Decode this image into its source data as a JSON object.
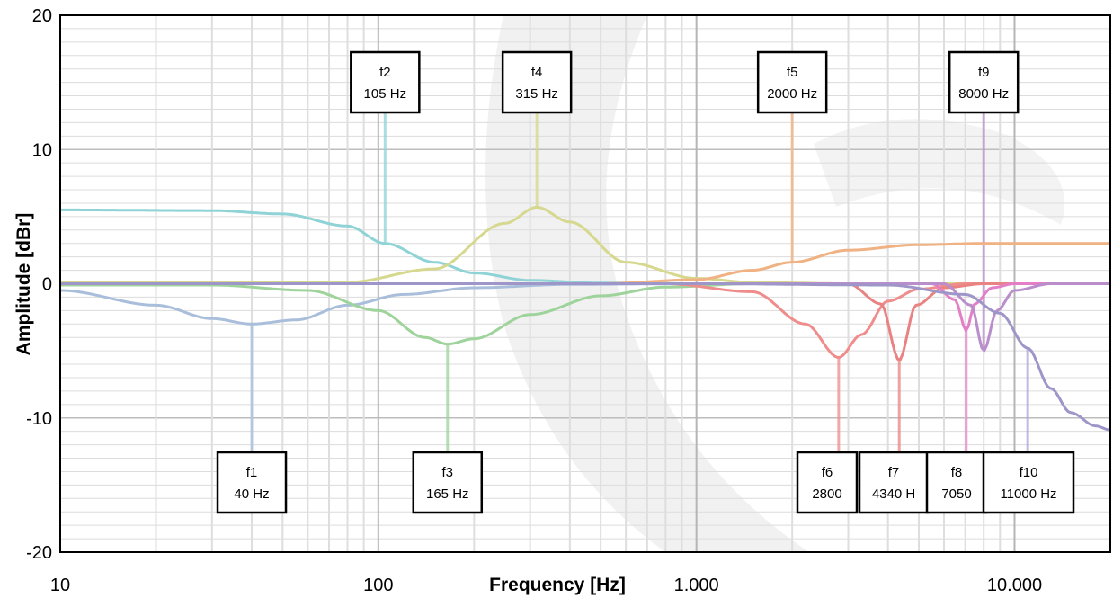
{
  "chart_data": {
    "type": "line",
    "title": "",
    "xlabel": "Frequency [Hz]",
    "ylabel": "Amplitude  [dBr]",
    "xscale": "log",
    "xlim": [
      10,
      20000
    ],
    "ylim": [
      -20,
      20
    ],
    "grid": true,
    "x_ticks": [
      {
        "value": 10,
        "label": "10"
      },
      {
        "value": 100,
        "label": "100"
      },
      {
        "value": 1000,
        "label": "1.000"
      },
      {
        "value": 10000,
        "label": "10.000"
      }
    ],
    "y_ticks": [
      {
        "value": 20,
        "label": "20"
      },
      {
        "value": 10,
        "label": "10"
      },
      {
        "value": 0,
        "label": "0"
      },
      {
        "value": -10,
        "label": "-10"
      },
      {
        "value": -20,
        "label": "-20"
      }
    ],
    "series": [
      {
        "color": "#8fd3d6",
        "kind": "lowshelf",
        "f": 105,
        "gain": 5.5,
        "points": [
          [
            10,
            5.5
          ],
          [
            30,
            5.45
          ],
          [
            50,
            5.2
          ],
          [
            80,
            4.3
          ],
          [
            105,
            3.0
          ],
          [
            150,
            1.6
          ],
          [
            200,
            0.8
          ],
          [
            300,
            0.25
          ],
          [
            500,
            0.05
          ],
          [
            1000,
            0
          ]
        ]
      },
      {
        "color": "#a9bedb",
        "kind": "peak",
        "f": 40,
        "gain": -3.0,
        "points": [
          [
            10,
            -0.5
          ],
          [
            20,
            -1.6
          ],
          [
            30,
            -2.6
          ],
          [
            40,
            -3.0
          ],
          [
            55,
            -2.7
          ],
          [
            80,
            -1.6
          ],
          [
            120,
            -0.8
          ],
          [
            200,
            -0.3
          ],
          [
            400,
            -0.05
          ],
          [
            1000,
            0
          ]
        ]
      },
      {
        "color": "#9ed39b",
        "kind": "peak",
        "f": 165,
        "gain": -4.5,
        "points": [
          [
            30,
            -0.1
          ],
          [
            60,
            -0.5
          ],
          [
            100,
            -2.0
          ],
          [
            140,
            -4.0
          ],
          [
            165,
            -4.5
          ],
          [
            200,
            -4.1
          ],
          [
            300,
            -2.3
          ],
          [
            500,
            -0.9
          ],
          [
            800,
            -0.25
          ],
          [
            1500,
            0
          ]
        ]
      },
      {
        "color": "#d6d88e",
        "kind": "peak",
        "f": 315,
        "gain": 5.7,
        "points": [
          [
            80,
            0.1
          ],
          [
            150,
            1.1
          ],
          [
            250,
            4.5
          ],
          [
            315,
            5.7
          ],
          [
            400,
            4.6
          ],
          [
            600,
            1.6
          ],
          [
            1000,
            0.4
          ],
          [
            1500,
            0.1
          ],
          [
            3000,
            0
          ]
        ]
      },
      {
        "color": "#f0b183",
        "kind": "highshelf",
        "f": 2000,
        "gain": 3.0,
        "points": [
          [
            500,
            0
          ],
          [
            1000,
            0.3
          ],
          [
            1500,
            1.0
          ],
          [
            2000,
            1.6
          ],
          [
            3000,
            2.5
          ],
          [
            5000,
            2.9
          ],
          [
            8000,
            3.0
          ],
          [
            20000,
            3.0
          ]
        ]
      },
      {
        "color": "#ef8c8c",
        "kind": "peak",
        "f": 2800,
        "gain": -5.5,
        "points": [
          [
            800,
            0
          ],
          [
            1500,
            -0.6
          ],
          [
            2200,
            -3.0
          ],
          [
            2800,
            -5.5
          ],
          [
            3300,
            -3.8
          ],
          [
            4000,
            -1.3
          ],
          [
            5000,
            -0.4
          ],
          [
            7000,
            0
          ]
        ]
      },
      {
        "color": "#e98383",
        "kind": "peak",
        "f": 4340,
        "gain": -5.7,
        "points": [
          [
            3000,
            0
          ],
          [
            3800,
            -1.5
          ],
          [
            4340,
            -5.7
          ],
          [
            4900,
            -1.6
          ],
          [
            6000,
            -0.3
          ],
          [
            8000,
            0
          ]
        ]
      },
      {
        "color": "#e47fc7",
        "kind": "peak",
        "f": 7050,
        "gain": -3.5,
        "points": [
          [
            5500,
            0
          ],
          [
            6500,
            -1.2
          ],
          [
            7050,
            -3.5
          ],
          [
            7500,
            -1.5
          ],
          [
            8500,
            -0.3
          ],
          [
            10000,
            0
          ]
        ]
      },
      {
        "color": "#b98ecb",
        "kind": "peak",
        "f": 8000,
        "gain": -5.0,
        "points": [
          [
            6000,
            0
          ],
          [
            7300,
            -1.6
          ],
          [
            8000,
            -5.0
          ],
          [
            8800,
            -2.0
          ],
          [
            10000,
            -0.5
          ],
          [
            13000,
            0
          ]
        ]
      },
      {
        "color": "#9e96c8",
        "kind": "lowpass",
        "f": 11000,
        "gain": -11,
        "points": [
          [
            1000,
            0
          ],
          [
            4000,
            -0.1
          ],
          [
            7000,
            -0.8
          ],
          [
            9000,
            -2.2
          ],
          [
            11000,
            -4.8
          ],
          [
            13000,
            -7.8
          ],
          [
            15000,
            -9.6
          ],
          [
            18000,
            -10.6
          ],
          [
            20000,
            -10.9
          ]
        ]
      }
    ],
    "markers": [
      {
        "name": "f1",
        "freq_label": "40 Hz",
        "freq": 40,
        "color": "#a9bedb",
        "box": "bottom",
        "y_at": -3.0
      },
      {
        "name": "f2",
        "freq_label": "105 Hz",
        "freq": 105,
        "color": "#8fd3d6",
        "box": "top",
        "y_at": 3.0
      },
      {
        "name": "f3",
        "freq_label": "165 Hz",
        "freq": 165,
        "color": "#9ed39b",
        "box": "bottom",
        "y_at": -4.5
      },
      {
        "name": "f4",
        "freq_label": "315 Hz",
        "freq": 315,
        "color": "#d6d88e",
        "box": "top",
        "y_at": 5.7
      },
      {
        "name": "f5",
        "freq_label": "2000 Hz",
        "freq": 2000,
        "color": "#f0b183",
        "box": "top",
        "y_at": 1.6
      },
      {
        "name": "f6",
        "freq_label": "2800",
        "freq": 2800,
        "color": "#ef8c8c",
        "box": "bottom",
        "y_at": -5.5
      },
      {
        "name": "f7",
        "freq_label": "4340 H",
        "freq": 4340,
        "color": "#e98383",
        "box": "bottom",
        "y_at": -5.7
      },
      {
        "name": "f8",
        "freq_label": "7050",
        "freq": 7050,
        "color": "#e47fc7",
        "box": "bottom",
        "y_at": -3.5
      },
      {
        "name": "f9",
        "freq_label": "8000 Hz",
        "freq": 8000,
        "color": "#b98ecb",
        "box": "top",
        "y_at": -5.0
      },
      {
        "name": "f10",
        "freq_label": "11000 Hz",
        "freq": 11000,
        "color": "#aaa6d6",
        "box": "bottom",
        "y_at": -4.8
      }
    ],
    "legend": "none"
  }
}
